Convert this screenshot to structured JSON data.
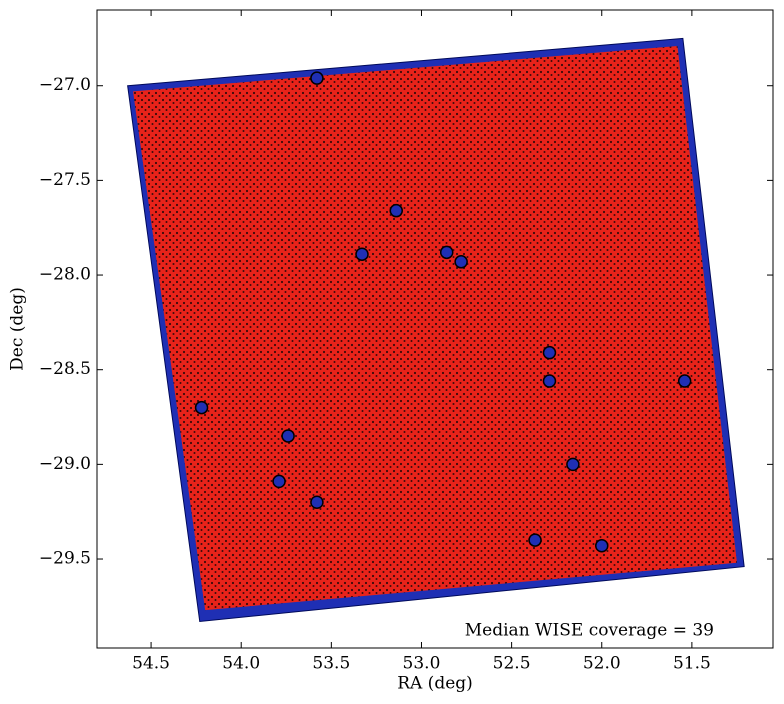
{
  "chart_data": {
    "type": "scatter",
    "xlabel": "RA (deg)",
    "ylabel": "Dec (deg)",
    "annotation": "Median WISE coverage = 39",
    "xlim": [
      54.8,
      51.05
    ],
    "ylim": [
      -29.97,
      -26.6
    ],
    "xticks": [
      54.5,
      {
        "value": 54.0,
        "label": "54.0"
      },
      53.5,
      {
        "value": 53.0,
        "label": "53.0"
      },
      52.5,
      {
        "value": 52.0,
        "label": "52.0"
      },
      51.5
    ],
    "yticks": [
      {
        "value": -27.0,
        "label": "−27.0"
      },
      {
        "value": -27.5,
        "label": "−27.5"
      },
      {
        "value": -28.0,
        "label": "−28.0"
      },
      {
        "value": -28.5,
        "label": "−28.5"
      },
      {
        "value": -29.0,
        "label": "−29.0"
      },
      {
        "value": -29.5,
        "label": "−29.5"
      }
    ],
    "series": [
      {
        "shape": "polygon",
        "color": "#1f2fb4",
        "x": [
          54.63,
          51.55,
          51.21,
          54.23
        ],
        "y": [
          -27.0,
          -26.75,
          -29.54,
          -29.83
        ]
      },
      {
        "shape": "polygon",
        "color": "#e8231a",
        "x": [
          54.6,
          51.58,
          51.25,
          54.2
        ],
        "y": [
          -27.03,
          -26.79,
          -29.52,
          -29.77
        ]
      },
      {
        "shape": "marker",
        "color": "#1f2fb4",
        "x": [
          53.33,
          53.79,
          52.16,
          51.54,
          53.58,
          52.29,
          52.29,
          52.86,
          52.37,
          54.22,
          53.74,
          52.0,
          53.14,
          52.78,
          53.58
        ],
        "y": [
          -27.89,
          -29.09,
          -29.0,
          -28.56,
          -26.96,
          -28.41,
          -28.56,
          -27.88,
          -29.4,
          -28.7,
          -28.85,
          -29.43,
          -27.66,
          -27.93,
          -29.2
        ]
      }
    ]
  }
}
